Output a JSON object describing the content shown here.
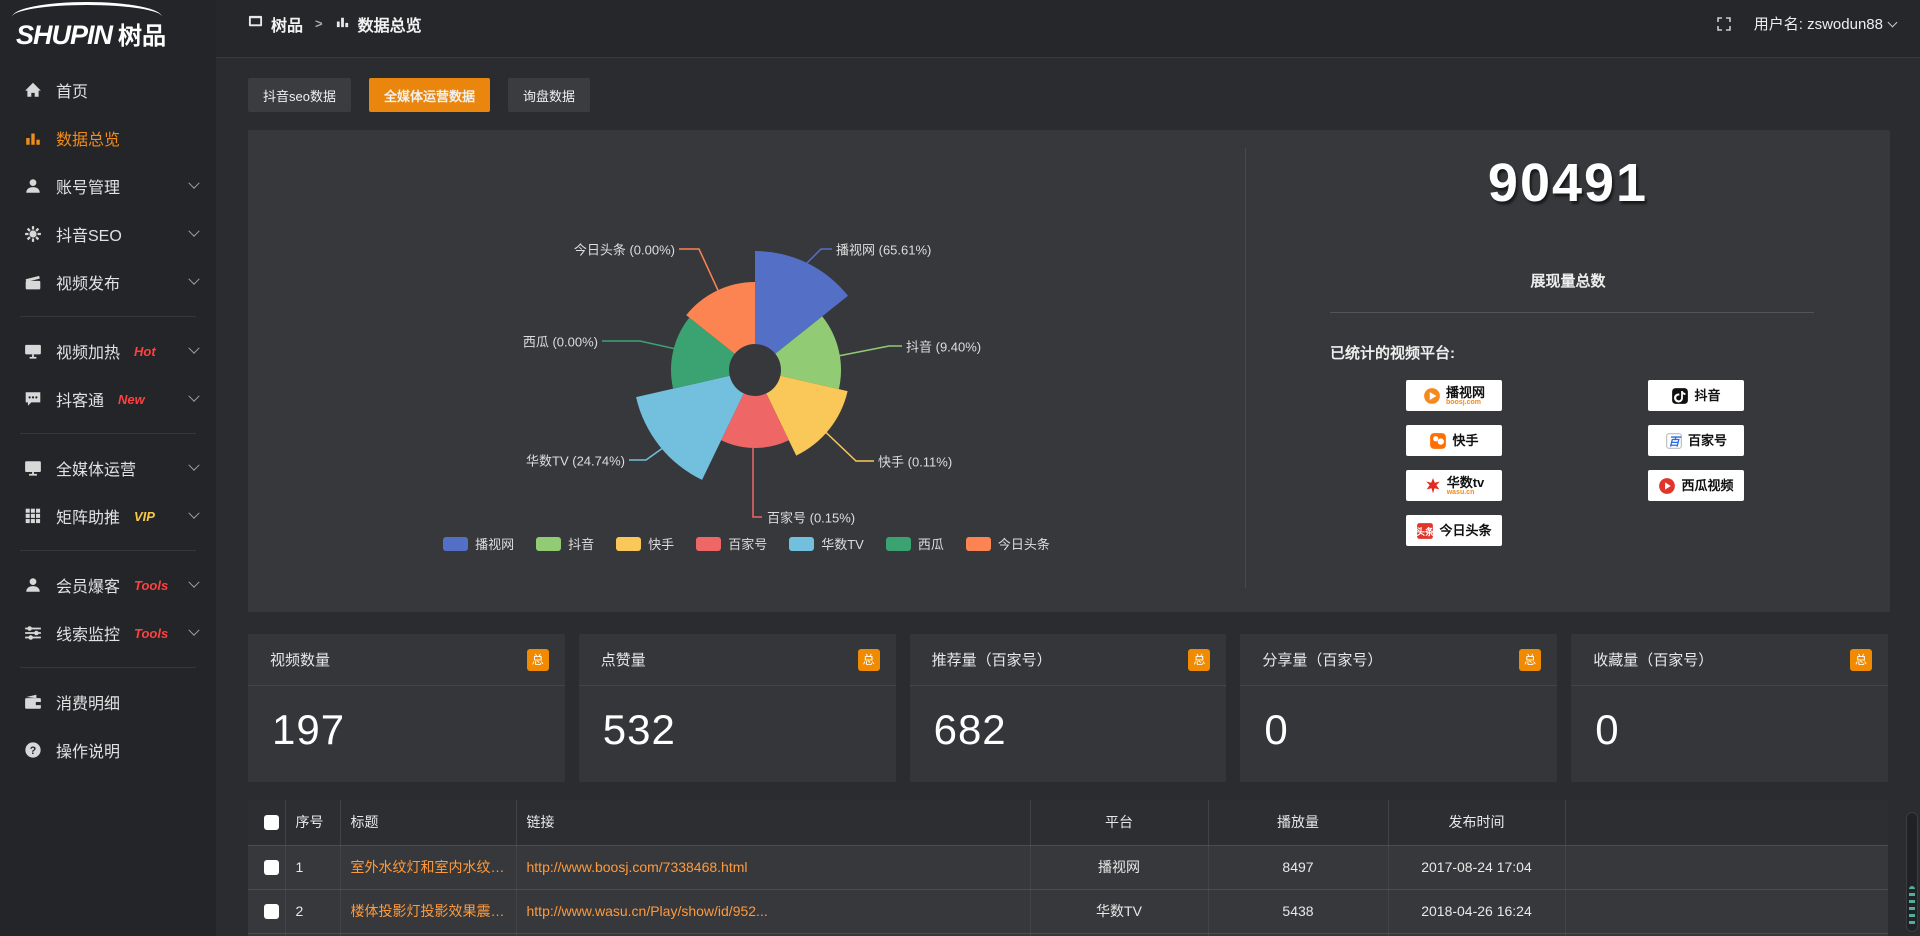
{
  "logo": {
    "en": "SHUPIN",
    "cn": "树品"
  },
  "topbar": {
    "breadcrumb_home": "树品",
    "breadcrumb_current": "数据总览",
    "username": "用户名: zswodun88"
  },
  "sidebar": {
    "items": [
      {
        "id": "home",
        "icon": "home-icon",
        "label": "首页"
      },
      {
        "id": "data-overview",
        "icon": "bar-chart-icon",
        "label": "数据总览",
        "active": true
      },
      {
        "id": "account-manage",
        "icon": "user-icon",
        "label": "账号管理",
        "chevron": true
      },
      {
        "id": "douyin-seo",
        "icon": "gear-icon",
        "label": "抖音SEO",
        "chevron": true
      },
      {
        "id": "video-publish",
        "icon": "clapper-icon",
        "label": "视频发布",
        "chevron": true,
        "divider_after": true
      },
      {
        "id": "video-heat",
        "icon": "screen-icon",
        "label": "视频加热",
        "badge": "Hot",
        "badge_color": "#ff4040",
        "chevron": true
      },
      {
        "id": "douketong",
        "icon": "chat-icon",
        "label": "抖客通",
        "badge": "New",
        "badge_color": "#ff4040",
        "chevron": true,
        "divider_after": true
      },
      {
        "id": "media-operation",
        "icon": "monitor-icon",
        "label": "全媒体运营",
        "chevron": true
      },
      {
        "id": "matrix-boost",
        "icon": "grid-icon",
        "label": "矩阵助推",
        "badge": "VIP",
        "badge_color": "#f7c948",
        "chevron": true,
        "divider_after": true
      },
      {
        "id": "member-burst",
        "icon": "person-icon",
        "label": "会员爆客",
        "badge": "Tools",
        "badge_color": "#ff4040",
        "chevron": true
      },
      {
        "id": "clue-monitor",
        "icon": "sliders-icon",
        "label": "线索监控",
        "badge": "Tools",
        "badge_color": "#ff4040",
        "chevron": true,
        "divider_after": true
      },
      {
        "id": "consume-detail",
        "icon": "wallet-icon",
        "label": "消费明细"
      },
      {
        "id": "operation-help",
        "icon": "question-icon",
        "label": "操作说明"
      }
    ]
  },
  "tabs": [
    {
      "label": "抖音seo数据",
      "active": false
    },
    {
      "label": "全媒体运营数据",
      "active": true
    },
    {
      "label": "询盘数据",
      "active": false
    }
  ],
  "chart_data": {
    "type": "pie",
    "subtype": "nightingale-rose",
    "title": "",
    "legend_position": "bottom",
    "inner_radius": 26,
    "segments": [
      {
        "name": "播视网",
        "percent": "65.61%",
        "color": "#5470c6",
        "radius": 119
      },
      {
        "name": "抖音",
        "percent": "9.40%",
        "color": "#91cc75",
        "radius": 86
      },
      {
        "name": "快手",
        "percent": "0.11%",
        "color": "#fac858",
        "radius": 95
      },
      {
        "name": "百家号",
        "percent": "0.15%",
        "color": "#ee6666",
        "radius": 78
      },
      {
        "name": "华数TV",
        "percent": "24.74%",
        "color": "#73c0de",
        "radius": 122
      },
      {
        "name": "西瓜",
        "percent": "0.00%",
        "color": "#3ba272",
        "radius": 84
      },
      {
        "name": "今日头条",
        "percent": "0.00%",
        "color": "#fc8452",
        "radius": 88
      }
    ]
  },
  "overview": {
    "total_value": "90491",
    "total_label": "展现量总数",
    "platforms_title": "已统计的视频平台:",
    "platforms_left": [
      {
        "name": "播视网",
        "sub": "boosj.com",
        "logo": "boosj-logo"
      },
      {
        "name": "快手",
        "logo": "kuaishou-logo"
      },
      {
        "name": "华数tv",
        "sub": "wasu.cn",
        "logo": "wasu-logo"
      },
      {
        "name": "今日头条",
        "logo": "toutiao-logo"
      }
    ],
    "platforms_right": [
      {
        "name": "抖音",
        "logo": "douyin-logo"
      },
      {
        "name": "百家号",
        "logo": "baijiahao-logo"
      },
      {
        "name": "西瓜视频",
        "logo": "xigua-logo"
      }
    ]
  },
  "stat_cards": [
    {
      "label": "视频数量",
      "badge": "总",
      "value": "197"
    },
    {
      "label": "点赞量",
      "badge": "总",
      "value": "532"
    },
    {
      "label": "推荐量（百家号）",
      "badge": "总",
      "value": "682"
    },
    {
      "label": "分享量（百家号）",
      "badge": "总",
      "value": "0"
    },
    {
      "label": "收藏量（百家号）",
      "badge": "总",
      "value": "0"
    }
  ],
  "table": {
    "headers": {
      "index": "序号",
      "title": "标题",
      "link": "链接",
      "platform": "平台",
      "views": "播放量",
      "published": "发布时间"
    },
    "rows": [
      {
        "index": "1",
        "title": "室外水纹灯和室内水纹灯的区别和简介",
        "link": "http://www.boosj.com/7338468.html",
        "platform": "播视网",
        "views": "8497",
        "published": "2017-08-24 17:04"
      },
      {
        "index": "2",
        "title": "楼体投影灯投影效果震撼上市",
        "link": "http://www.wasu.cn/Play/show/id/952...",
        "platform": "华数TV",
        "views": "5438",
        "published": "2018-04-26 16:24"
      }
    ]
  },
  "colors": {
    "accent": "#ea860d",
    "link": "#ff9a3c",
    "sidebar_active": "#f08c1c"
  }
}
